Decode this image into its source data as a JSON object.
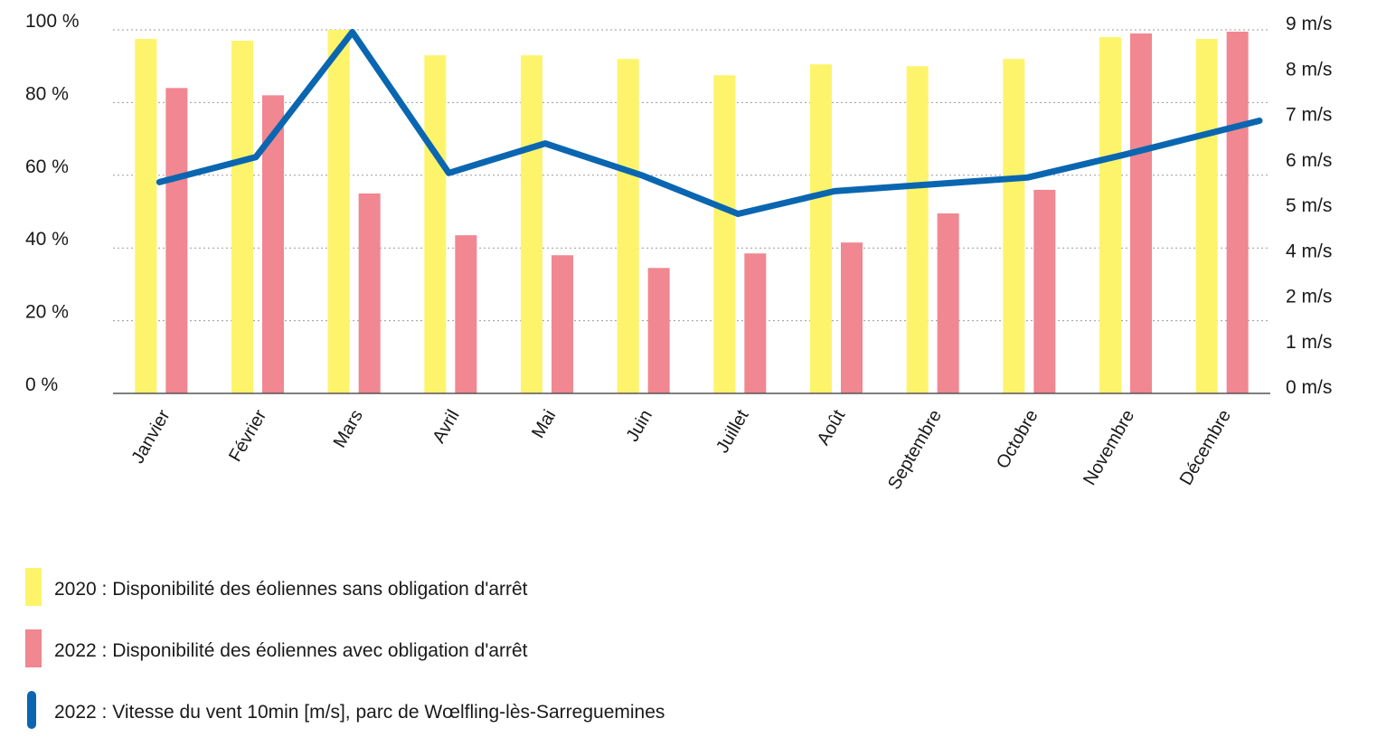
{
  "chart_data": {
    "type": "bar",
    "categories": [
      "Janvier",
      "Février",
      "Mars",
      "Avril",
      "Mai",
      "Juin",
      "Juillet",
      "Août",
      "Septembre",
      "Octobre",
      "Novembre",
      "Décembre"
    ],
    "series": [
      {
        "name": "2020 : Disponibilité des éoliennes sans obligation d'arrêt",
        "type": "bar",
        "axis": "left",
        "color": "#fdf46b",
        "values": [
          97.5,
          97,
          100,
          93,
          93,
          92,
          87.5,
          90.5,
          90,
          92,
          98,
          97.5
        ]
      },
      {
        "name": "2022 : Disponibilité des éoliennes avec obligation d'arrêt",
        "type": "bar",
        "axis": "left",
        "color": "#f08791",
        "values": [
          84,
          82,
          55,
          43.5,
          38,
          34.5,
          38.5,
          41.5,
          49.5,
          56,
          99,
          99.5
        ]
      },
      {
        "name": "2022 : Vitesse du vent 10min [m/s], parc de Wœlfling-lès-Sarreguemines",
        "type": "line",
        "axis": "right",
        "color": "#0a66b0",
        "values": [
          5.65,
          6.2,
          8.95,
          5.85,
          6.5,
          5.8,
          4.95,
          5.45,
          5.6,
          5.75,
          6.25,
          7.0
        ]
      }
    ],
    "y_left": {
      "ticks": [
        0,
        20,
        40,
        60,
        80,
        100
      ],
      "tick_labels": [
        "0 %",
        "20 %",
        "40 %",
        "60 %",
        "80 %",
        "100 %"
      ],
      "ylim": [
        0,
        100
      ]
    },
    "y_right": {
      "ticks": [
        0,
        1,
        2,
        4,
        5,
        6,
        7,
        8,
        9
      ],
      "tick_labels": [
        "0 m/s",
        "1 m/s",
        "2 m/s",
        "4 m/s",
        "5 m/s",
        "6 m/s",
        "7 m/s",
        "8 m/s",
        "9 m/s"
      ]
    },
    "grid": true,
    "legend_position": "bottom-left"
  }
}
